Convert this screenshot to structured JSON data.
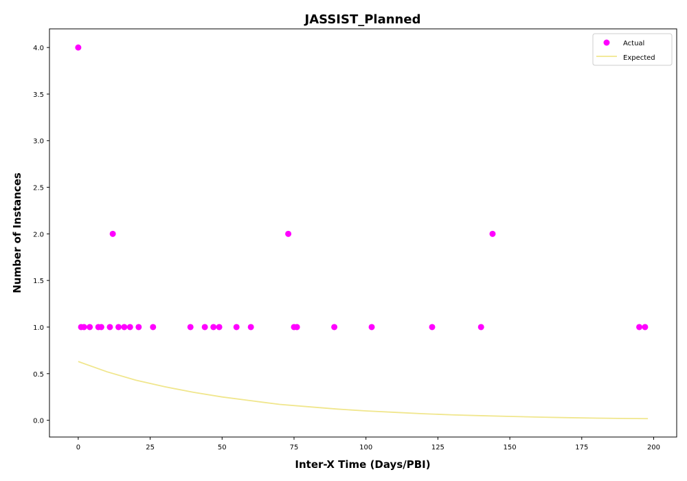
{
  "chart_data": {
    "type": "scatter",
    "title": "JASSIST_Planned",
    "xlabel": "Inter-X Time (Days/PBI)",
    "ylabel": "Number of Instances",
    "xlim": [
      -10,
      208
    ],
    "ylim": [
      -0.18,
      4.2
    ],
    "xticks": [
      0,
      25,
      50,
      75,
      100,
      125,
      150,
      175,
      200
    ],
    "yticks": [
      0.0,
      0.5,
      1.0,
      1.5,
      2.0,
      2.5,
      3.0,
      3.5,
      4.0
    ],
    "grid": false,
    "legend_position": "top-right",
    "series": [
      {
        "name": "Actual",
        "kind": "scatter",
        "color": "#ff00ff",
        "x": [
          0,
          1,
          2,
          4,
          7,
          8,
          11,
          12,
          14,
          16,
          18,
          21,
          26,
          39,
          44,
          47,
          49,
          55,
          60,
          73,
          75,
          76,
          89,
          102,
          123,
          140,
          144,
          195,
          197
        ],
        "y": [
          4,
          1,
          1,
          1,
          1,
          1,
          1,
          2,
          1,
          1,
          1,
          1,
          1,
          1,
          1,
          1,
          1,
          1,
          1,
          2,
          1,
          1,
          1,
          1,
          1,
          1,
          2,
          1,
          1
        ]
      },
      {
        "name": "Expected",
        "kind": "line",
        "color": "#f0e68c",
        "x": [
          0,
          10,
          20,
          30,
          40,
          50,
          60,
          70,
          80,
          90,
          100,
          110,
          120,
          130,
          140,
          150,
          160,
          170,
          180,
          190,
          198
        ],
        "y": [
          0.63,
          0.52,
          0.43,
          0.36,
          0.3,
          0.25,
          0.21,
          0.17,
          0.145,
          0.12,
          0.1,
          0.085,
          0.07,
          0.058,
          0.049,
          0.041,
          0.034,
          0.028,
          0.023,
          0.019,
          0.017
        ]
      }
    ]
  }
}
